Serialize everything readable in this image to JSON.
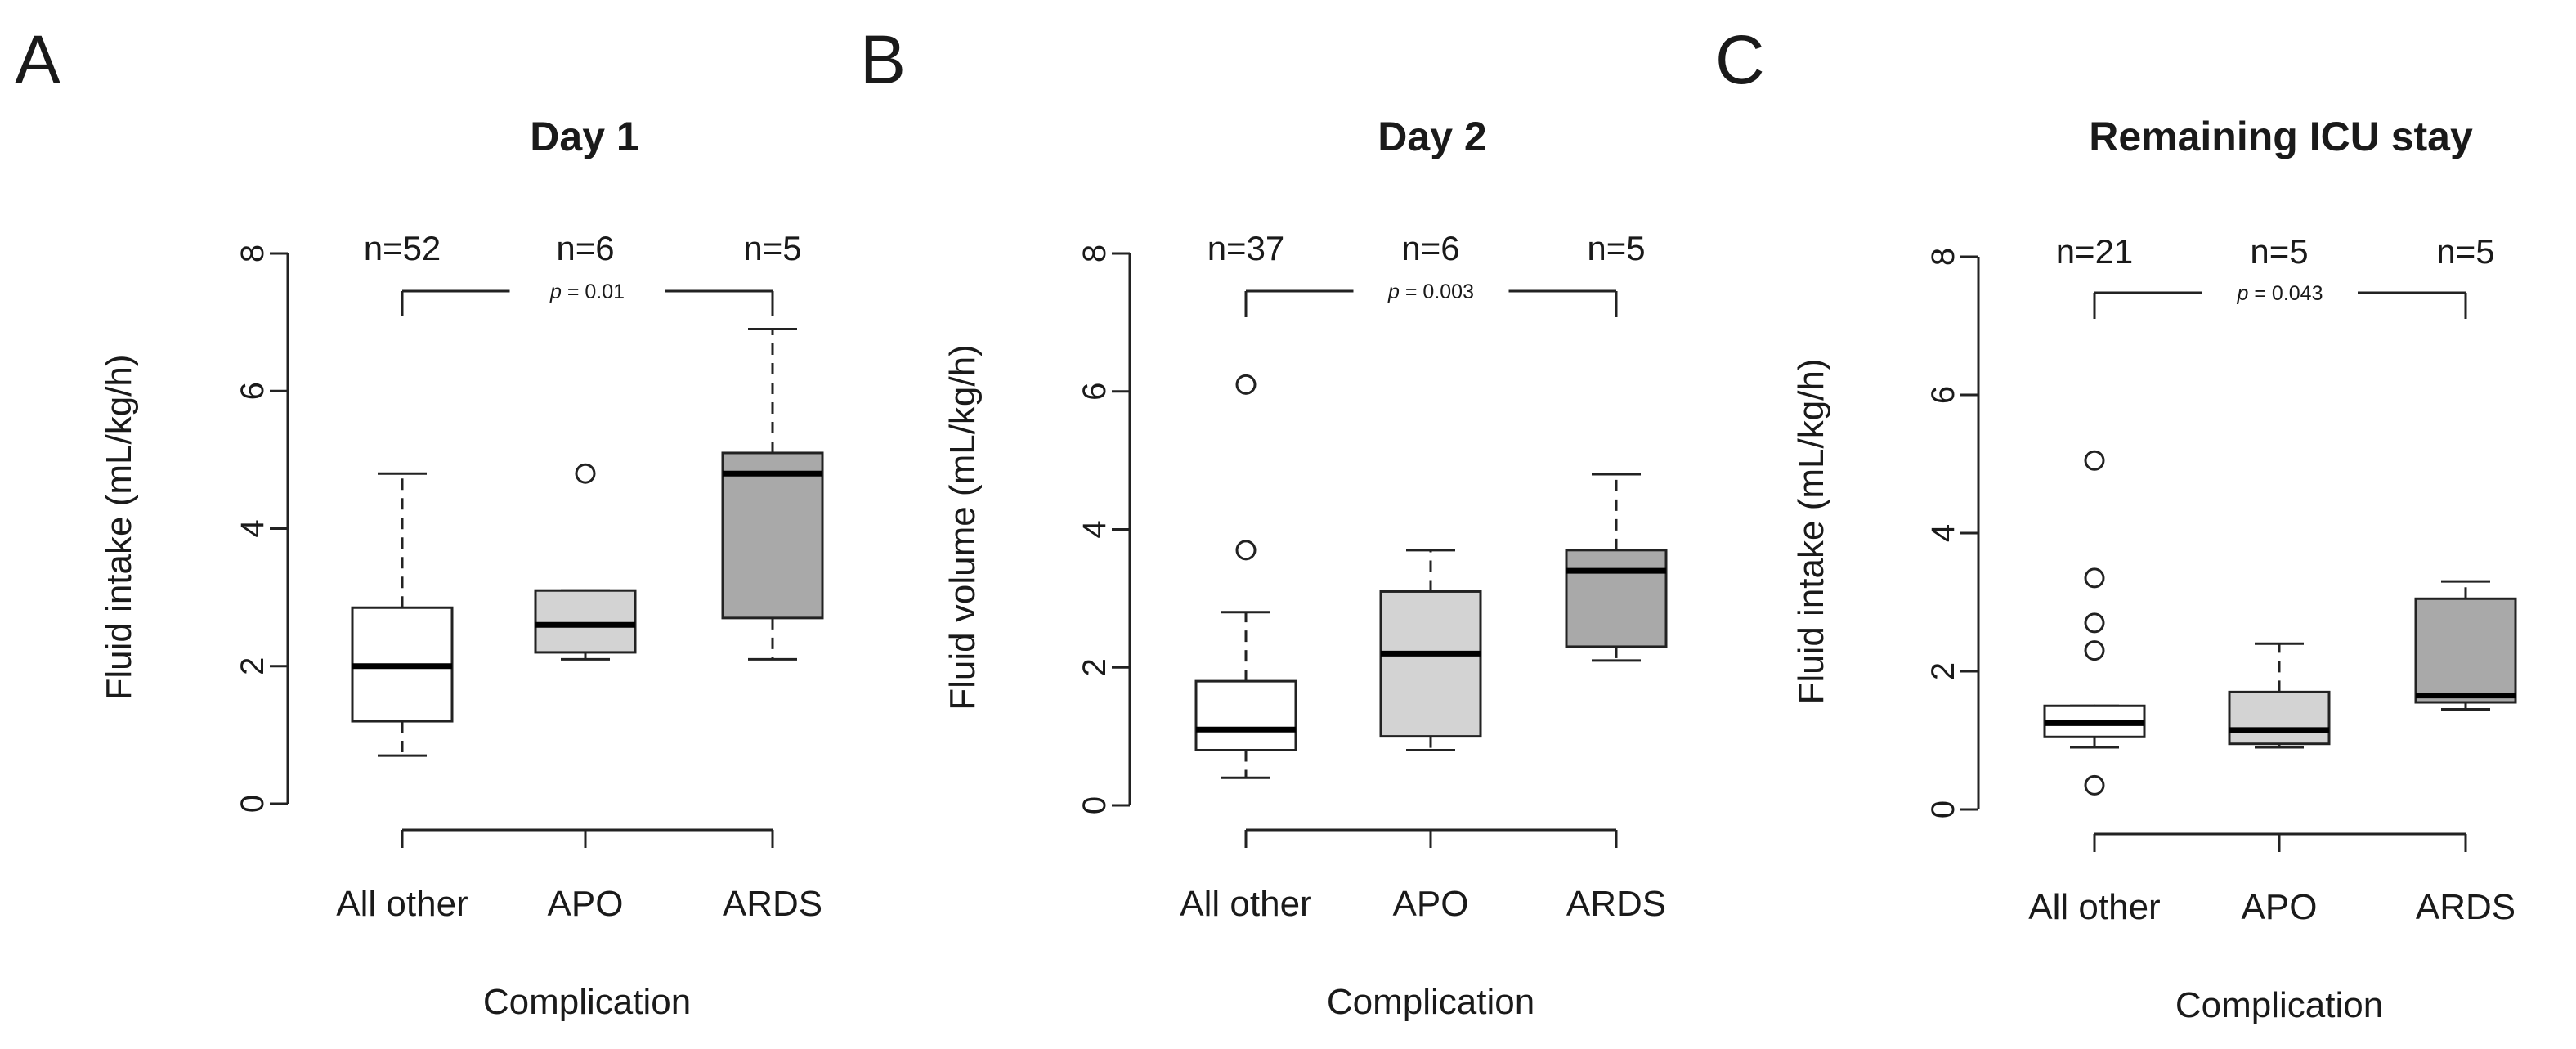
{
  "chart_data": [
    {
      "panel": "A",
      "type": "box",
      "title": "Day 1",
      "xlabel": "Complication",
      "ylabel": "Fluid intake (mL/kg/h)",
      "ylim": [
        0,
        8
      ],
      "yticks": [
        "0",
        "2",
        "4",
        "6",
        "8"
      ],
      "categories": [
        "All other",
        "APO",
        "ARDS"
      ],
      "n_labels": [
        "n=52",
        "n=6",
        "n=5"
      ],
      "comparison": {
        "p_prefix": "p",
        "p_value": "= 0.01",
        "from": 0,
        "to": 2
      },
      "boxes": [
        {
          "whisker_low": 0.7,
          "q1": 1.2,
          "median": 2.0,
          "q3": 2.85,
          "whisker_high": 4.8,
          "outliers": [],
          "fill": "#ffffff"
        },
        {
          "whisker_low": 2.1,
          "q1": 2.2,
          "median": 2.6,
          "q3": 3.1,
          "whisker_high": 3.1,
          "outliers": [
            4.8
          ],
          "fill": "#d3d3d3"
        },
        {
          "whisker_low": 2.1,
          "q1": 2.7,
          "median": 4.8,
          "q3": 5.1,
          "whisker_high": 6.9,
          "outliers": [],
          "fill": "#a9a9a9"
        }
      ]
    },
    {
      "panel": "B",
      "type": "box",
      "title": "Day 2",
      "xlabel": "Complication",
      "ylabel": "Fluid volume (mL/kg/h)",
      "ylim": [
        0,
        8
      ],
      "yticks": [
        "0",
        "2",
        "4",
        "6",
        "8"
      ],
      "categories": [
        "All other",
        "APO",
        "ARDS"
      ],
      "n_labels": [
        "n=37",
        "n=6",
        "n=5"
      ],
      "comparison": {
        "p_prefix": "p",
        "p_value": "= 0.003",
        "from": 0,
        "to": 2
      },
      "boxes": [
        {
          "whisker_low": 0.4,
          "q1": 0.8,
          "median": 1.1,
          "q3": 1.8,
          "whisker_high": 2.8,
          "outliers": [
            3.7,
            6.1
          ],
          "fill": "#ffffff"
        },
        {
          "whisker_low": 0.8,
          "q1": 1.0,
          "median": 2.2,
          "q3": 3.1,
          "whisker_high": 3.7,
          "outliers": [],
          "fill": "#d3d3d3"
        },
        {
          "whisker_low": 2.1,
          "q1": 2.3,
          "median": 3.4,
          "q3": 3.7,
          "whisker_high": 4.8,
          "outliers": [],
          "fill": "#a9a9a9"
        }
      ]
    },
    {
      "panel": "C",
      "type": "box",
      "title": "Remaining ICU stay",
      "xlabel": "Complication",
      "ylabel": "Fluid intake (mL/kg/h)",
      "ylim": [
        0,
        8
      ],
      "yticks": [
        "0",
        "2",
        "4",
        "6",
        "8"
      ],
      "categories": [
        "All other",
        "APO",
        "ARDS"
      ],
      "n_labels": [
        "n=21",
        "n=5",
        "n=5"
      ],
      "comparison": {
        "p_prefix": "p",
        "p_value": "= 0.043",
        "from": 0,
        "to": 2
      },
      "boxes": [
        {
          "whisker_low": 0.9,
          "q1": 1.05,
          "median": 1.25,
          "q3": 1.5,
          "whisker_high": 1.5,
          "outliers": [
            0.35,
            2.3,
            2.7,
            3.35,
            5.05
          ],
          "fill": "#ffffff"
        },
        {
          "whisker_low": 0.9,
          "q1": 0.95,
          "median": 1.15,
          "q3": 1.7,
          "whisker_high": 2.4,
          "outliers": [],
          "fill": "#d3d3d3"
        },
        {
          "whisker_low": 1.45,
          "q1": 1.55,
          "median": 1.65,
          "q3": 3.05,
          "whisker_high": 3.3,
          "outliers": [],
          "fill": "#a9a9a9"
        }
      ]
    }
  ]
}
